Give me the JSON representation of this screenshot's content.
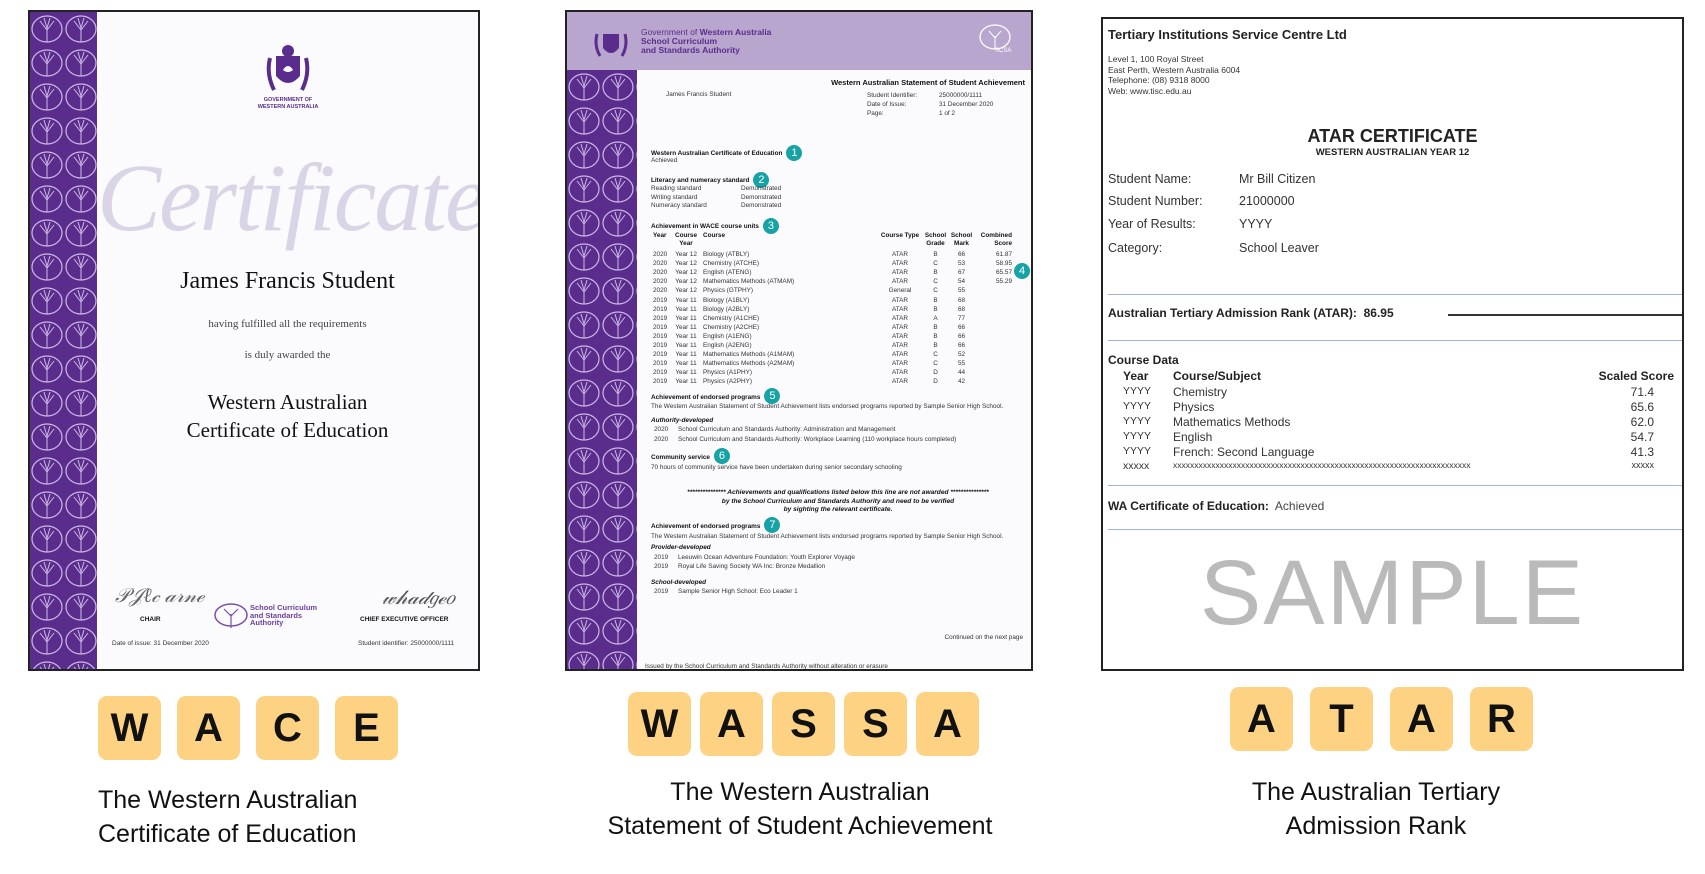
{
  "colors": {
    "purple": "#5a2d8c",
    "header_lilac": "#b8a6cf",
    "badge_teal": "#17a2a6",
    "tile": "#fdd283"
  },
  "wace": {
    "gov_line1": "GOVERNMENT OF",
    "gov_line2": "WESTERN AUSTRALIA",
    "script_title": "Certificate",
    "student_name": "James Francis Student",
    "line1": "having fulfilled all the requirements",
    "line2": "is duly awarded the",
    "award1": "Western Australian",
    "award2": "Certificate of Education",
    "chair": "CHAIR",
    "ceo": "CHIEF EXECUTIVE OFFICER",
    "logo_l1": "School Curriculum",
    "logo_l2": "and Standards",
    "logo_l3": "Authority",
    "date": "Date of issue: 31 December 2020",
    "student_id": "Student identifier: 25000000/1111",
    "tiles": [
      "W",
      "A",
      "C",
      "E"
    ],
    "caption1": "The Western Australian",
    "caption2": "Certificate of Education"
  },
  "wassa": {
    "org1": "Government of",
    "org1b": "Western Australia",
    "org2": "School Curriculum",
    "org3": "and Standards Authority",
    "scsa": "SCSA",
    "title": "Western Australian Statement of Student Achievement",
    "student_name": "James Francis Student",
    "meta": [
      [
        "Student Identifier:",
        "25000000/1111"
      ],
      [
        "Date of Issue:",
        "31 December 2020"
      ],
      [
        "Page:",
        "1 of 2"
      ]
    ],
    "s1": {
      "heading": "Western Australian Certificate of Education",
      "badge": "1",
      "value": "Achieved"
    },
    "s2": {
      "heading": "Literacy and numeracy standard",
      "badge": "2",
      "rows": [
        [
          "Reading standard",
          "Demonstrated"
        ],
        [
          "Writing standard",
          "Demonstrated"
        ],
        [
          "Numeracy standard",
          "Demonstrated"
        ]
      ]
    },
    "s3": {
      "heading": "Achievement in WACE course units",
      "badge": "3",
      "badge4": "4",
      "columns": [
        "Year",
        "Course Year",
        "Course",
        "Course Type",
        "School Grade",
        "School Mark",
        "Combined Score"
      ],
      "rows": [
        [
          "2020",
          "Year 12",
          "Biology (ATBLY)",
          "ATAR",
          "B",
          "66",
          "61.87"
        ],
        [
          "2020",
          "Year 12",
          "Chemistry (ATCHE)",
          "ATAR",
          "C",
          "53",
          "58.95"
        ],
        [
          "2020",
          "Year 12",
          "English (ATENG)",
          "ATAR",
          "B",
          "67",
          "65.57"
        ],
        [
          "2020",
          "Year 12",
          "Mathematics Methods (ATMAM)",
          "ATAR",
          "C",
          "54",
          "55.29"
        ],
        [
          "2020",
          "Year 12",
          "Physics (GTPHY)",
          "General",
          "C",
          "55",
          ""
        ],
        [
          "2019",
          "Year 11",
          "Biology (A1BLY)",
          "ATAR",
          "B",
          "68",
          ""
        ],
        [
          "2019",
          "Year 11",
          "Biology (A2BLY)",
          "ATAR",
          "B",
          "68",
          ""
        ],
        [
          "2019",
          "Year 11",
          "Chemistry (A1CHE)",
          "ATAR",
          "A",
          "77",
          ""
        ],
        [
          "2019",
          "Year 11",
          "Chemistry (A2CHE)",
          "ATAR",
          "B",
          "66",
          ""
        ],
        [
          "2019",
          "Year 11",
          "English (A1ENG)",
          "ATAR",
          "B",
          "66",
          ""
        ],
        [
          "2019",
          "Year 11",
          "English (A2ENG)",
          "ATAR",
          "B",
          "66",
          ""
        ],
        [
          "2019",
          "Year 11",
          "Mathematics Methods (A1MAM)",
          "ATAR",
          "C",
          "52",
          ""
        ],
        [
          "2019",
          "Year 11",
          "Mathematics Methods (A2MAM)",
          "ATAR",
          "C",
          "55",
          ""
        ],
        [
          "2019",
          "Year 11",
          "Physics (A1PHY)",
          "ATAR",
          "D",
          "44",
          ""
        ],
        [
          "2019",
          "Year 11",
          "Physics (A2PHY)",
          "ATAR",
          "D",
          "42",
          ""
        ]
      ]
    },
    "s5": {
      "heading": "Achievement of endorsed programs",
      "badge": "5",
      "text": "The Western Australian Statement of Student Achievement lists endorsed programs reported by Sample Senior High School.",
      "sub": "Authority-developed",
      "rows": [
        [
          "2020",
          "School Curriculum and Standards Authority: Administration and Management"
        ],
        [
          "2020",
          "School Curriculum and Standards Authority: Workplace Learning (110 workplace hours completed)"
        ]
      ]
    },
    "s6": {
      "heading": "Community service",
      "badge": "6",
      "text": "70 hours of community service have been undertaken during senior secondary schooling"
    },
    "notice": [
      "*************** Achievements and qualifications listed below this line are not awarded ***************",
      "by the School Curriculum and Standards Authority and need to be verified",
      "by sighting the relevant certificate."
    ],
    "s7": {
      "heading": "Achievement of endorsed programs",
      "badge": "7",
      "text": "The Western Australian Statement of Student Achievement lists endorsed programs reported by Sample Senior High School.",
      "sub1": "Provider-developed",
      "rows1": [
        [
          "2019",
          "Leeuwin Ocean Adventure Foundation: Youth Explorer Voyage"
        ],
        [
          "2019",
          "Royal Life Saving Society WA Inc: Bronze Medallion"
        ]
      ],
      "sub2": "School-developed",
      "rows2": [
        [
          "2019",
          "Sample Senior High School: Eco Leader 1"
        ]
      ]
    },
    "continued": "Continued on the next page",
    "issued": "Issued by the School Curriculum and Standards Authority without alteration or erasure",
    "tiles": [
      "W",
      "A",
      "S",
      "S",
      "A"
    ],
    "caption1": "The Western Australian",
    "caption2": "Statement of Student Achievement"
  },
  "atar": {
    "org": "Tertiary Institutions Service Centre Ltd",
    "address": [
      "Level 1, 100 Royal Street",
      "East Perth, Western Australia 6004",
      "Telephone: (08) 9318 8000",
      "Web: www.tisc.edu.au"
    ],
    "title": "ATAR CERTIFICATE",
    "subtitle": "WESTERN AUSTRALIAN YEAR 12",
    "fields": [
      [
        "Student Name:",
        "Mr Bill Citizen"
      ],
      [
        "Student Number:",
        "21000000"
      ],
      [
        "Year of Results:",
        "YYYY"
      ],
      [
        "Category:",
        "School Leaver"
      ]
    ],
    "atar_label": "Australian Tertiary Admission Rank (ATAR):",
    "atar_value": "86.95",
    "course_data": "Course Data",
    "columns": [
      "Year",
      "Course/Subject",
      "Scaled Score"
    ],
    "rows": [
      [
        "YYYY",
        "Chemistry",
        "71.4"
      ],
      [
        "YYYY",
        "Physics",
        "65.6"
      ],
      [
        "YYYY",
        "Mathematics Methods",
        "62.0"
      ],
      [
        "YYYY",
        "English",
        "54.7"
      ],
      [
        "YYYY",
        "French: Second Language",
        "41.3"
      ],
      [
        "xxxxx",
        "xxxxxxxxxxxxxxxxxxxxxxxxxxxxxxxxxxxxxxxxxxxxxxxxxxxxxxxxxxxxxxxxxxxxxx",
        "xxxxx"
      ]
    ],
    "wace_label": "WA Certificate of Education:",
    "wace_value": "Achieved",
    "watermark": "SAMPLE",
    "tiles": [
      "A",
      "T",
      "A",
      "R"
    ],
    "caption1": "The Australian Tertiary",
    "caption2": "Admission Rank"
  }
}
